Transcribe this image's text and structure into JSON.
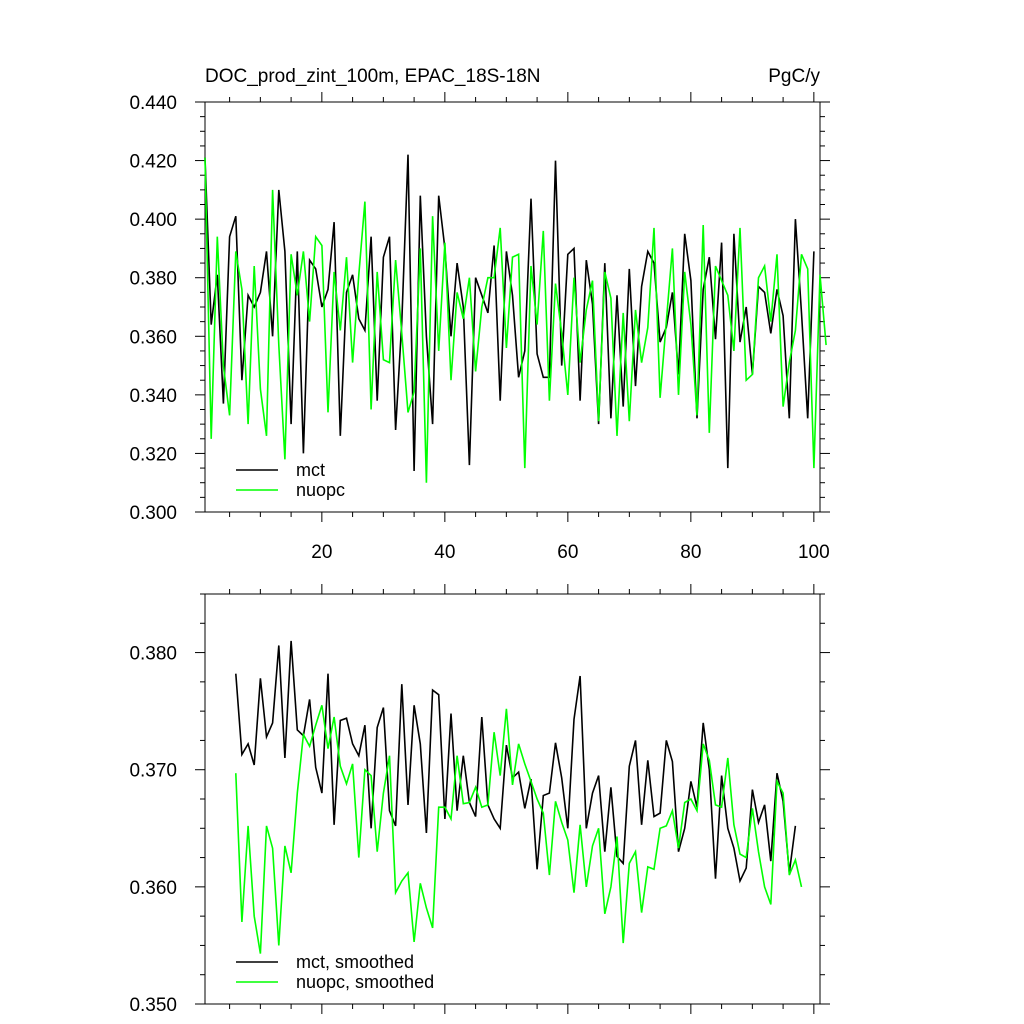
{
  "chart_data": [
    {
      "type": "line",
      "title": "DOC_prod_zint_100m, EPAC_18S-18N",
      "units": "PgC/y",
      "xlim": [
        1,
        101
      ],
      "ylim": [
        0.3,
        0.44
      ],
      "xticks": [
        20,
        40,
        60,
        80,
        100
      ],
      "yticks": [
        0.3,
        0.32,
        0.34,
        0.36,
        0.38,
        0.4,
        0.42,
        0.44
      ],
      "ytick_labels": [
        "0.300",
        "0.320",
        "0.340",
        "0.360",
        "0.380",
        "0.400",
        "0.420",
        "0.440"
      ],
      "legend": "bottom-left",
      "series": [
        {
          "name": "mct",
          "color": "#000000",
          "x_start": 1,
          "values": [
            0.421,
            0.364,
            0.381,
            0.337,
            0.394,
            0.401,
            0.345,
            0.374,
            0.37,
            0.375,
            0.389,
            0.36,
            0.41,
            0.389,
            0.33,
            0.389,
            0.32,
            0.386,
            0.383,
            0.37,
            0.376,
            0.399,
            0.326,
            0.375,
            0.381,
            0.366,
            0.362,
            0.394,
            0.338,
            0.387,
            0.394,
            0.328,
            0.365,
            0.422,
            0.314,
            0.408,
            0.36,
            0.33,
            0.408,
            0.39,
            0.36,
            0.385,
            0.37,
            0.316,
            0.38,
            0.374,
            0.368,
            0.391,
            0.338,
            0.389,
            0.374,
            0.346,
            0.355,
            0.407,
            0.354,
            0.346,
            0.346,
            0.42,
            0.35,
            0.388,
            0.39,
            0.338,
            0.386,
            0.371,
            0.33,
            0.385,
            0.332,
            0.374,
            0.336,
            0.383,
            0.343,
            0.377,
            0.389,
            0.385,
            0.358,
            0.363,
            0.375,
            0.347,
            0.395,
            0.379,
            0.332,
            0.376,
            0.387,
            0.359,
            0.392,
            0.315,
            0.395,
            0.358,
            0.37,
            0.347,
            0.377,
            0.375,
            0.361,
            0.376,
            0.367,
            0.332,
            0.4,
            0.368,
            0.332,
            0.389
          ]
        },
        {
          "name": "nuopc",
          "color": "#00ff00",
          "x_start": 1,
          "values": [
            0.421,
            0.325,
            0.394,
            0.35,
            0.333,
            0.389,
            0.376,
            0.33,
            0.384,
            0.342,
            0.326,
            0.41,
            0.357,
            0.318,
            0.388,
            0.374,
            0.389,
            0.365,
            0.394,
            0.391,
            0.334,
            0.382,
            0.362,
            0.387,
            0.351,
            0.381,
            0.406,
            0.335,
            0.382,
            0.352,
            0.351,
            0.386,
            0.361,
            0.334,
            0.341,
            0.39,
            0.31,
            0.401,
            0.355,
            0.392,
            0.345,
            0.375,
            0.366,
            0.38,
            0.348,
            0.37,
            0.38,
            0.38,
            0.397,
            0.356,
            0.387,
            0.388,
            0.315,
            0.384,
            0.364,
            0.396,
            0.338,
            0.378,
            0.361,
            0.34,
            0.38,
            0.351,
            0.369,
            0.379,
            0.331,
            0.382,
            0.373,
            0.326,
            0.368,
            0.331,
            0.369,
            0.351,
            0.363,
            0.397,
            0.339,
            0.365,
            0.39,
            0.34,
            0.382,
            0.364,
            0.333,
            0.398,
            0.327,
            0.384,
            0.379,
            0.374,
            0.355,
            0.397,
            0.345,
            0.347,
            0.38,
            0.384,
            0.365,
            0.388,
            0.336,
            0.351,
            0.362,
            0.388,
            0.383,
            0.315,
            0.381,
            0.357
          ]
        }
      ]
    },
    {
      "type": "line",
      "xlim": [
        1,
        101
      ],
      "ylim": [
        0.35,
        0.385
      ],
      "xticks": [
        20,
        40,
        60,
        80,
        100
      ],
      "yticks": [
        0.35,
        0.36,
        0.37,
        0.38
      ],
      "ytick_labels": [
        "0.350",
        "0.360",
        "0.370",
        "0.380"
      ],
      "legend": "bottom-left",
      "series": [
        {
          "name": "mct, smoothed",
          "color": "#000000",
          "x_start": 6,
          "values": [
            0.3782,
            0.3713,
            0.3722,
            0.3704,
            0.3778,
            0.3728,
            0.374,
            0.3806,
            0.371,
            0.381,
            0.3734,
            0.3729,
            0.376,
            0.3702,
            0.368,
            0.3782,
            0.3653,
            0.3742,
            0.3744,
            0.3722,
            0.3712,
            0.3738,
            0.365,
            0.3736,
            0.3753,
            0.3665,
            0.3652,
            0.3773,
            0.367,
            0.3755,
            0.3722,
            0.3646,
            0.3768,
            0.3764,
            0.3658,
            0.3748,
            0.3665,
            0.3712,
            0.3672,
            0.366,
            0.3745,
            0.367,
            0.3658,
            0.365,
            0.3721,
            0.3693,
            0.3698,
            0.3667,
            0.3692,
            0.3615,
            0.3678,
            0.368,
            0.3723,
            0.3693,
            0.365,
            0.3743,
            0.378,
            0.365,
            0.368,
            0.3695,
            0.363,
            0.3685,
            0.3626,
            0.362,
            0.3703,
            0.3725,
            0.3653,
            0.3708,
            0.366,
            0.3663,
            0.3725,
            0.3707,
            0.363,
            0.365,
            0.369,
            0.3668,
            0.374,
            0.37,
            0.3607,
            0.3695,
            0.365,
            0.3633,
            0.3605,
            0.3616,
            0.3683,
            0.3655,
            0.367,
            0.3622,
            0.3697,
            0.3673,
            0.3612,
            0.3652
          ]
        },
        {
          "name": "nuopc, smoothed",
          "color": "#00ff00",
          "x_start": 6,
          "values": [
            0.3697,
            0.357,
            0.3652,
            0.3575,
            0.3543,
            0.3652,
            0.3633,
            0.355,
            0.3635,
            0.3612,
            0.368,
            0.373,
            0.372,
            0.3738,
            0.3755,
            0.3718,
            0.3745,
            0.3703,
            0.3688,
            0.3705,
            0.3625,
            0.37,
            0.3695,
            0.363,
            0.368,
            0.3712,
            0.3595,
            0.3605,
            0.3612,
            0.3553,
            0.3603,
            0.3582,
            0.3565,
            0.3668,
            0.3668,
            0.3658,
            0.3712,
            0.3671,
            0.3672,
            0.3685,
            0.3668,
            0.367,
            0.3732,
            0.3695,
            0.3752,
            0.3687,
            0.3722,
            0.3705,
            0.369,
            0.3675,
            0.3663,
            0.361,
            0.3673,
            0.3655,
            0.364,
            0.3595,
            0.3653,
            0.36,
            0.3635,
            0.365,
            0.3577,
            0.36,
            0.3643,
            0.3552,
            0.362,
            0.363,
            0.3578,
            0.3617,
            0.3615,
            0.365,
            0.3652,
            0.3665,
            0.3633,
            0.3672,
            0.3675,
            0.3665,
            0.3722,
            0.3708,
            0.367,
            0.3668,
            0.371,
            0.3653,
            0.3628,
            0.3625,
            0.3667,
            0.363,
            0.36,
            0.3585,
            0.369,
            0.368,
            0.361,
            0.3623,
            0.36
          ]
        }
      ]
    }
  ]
}
